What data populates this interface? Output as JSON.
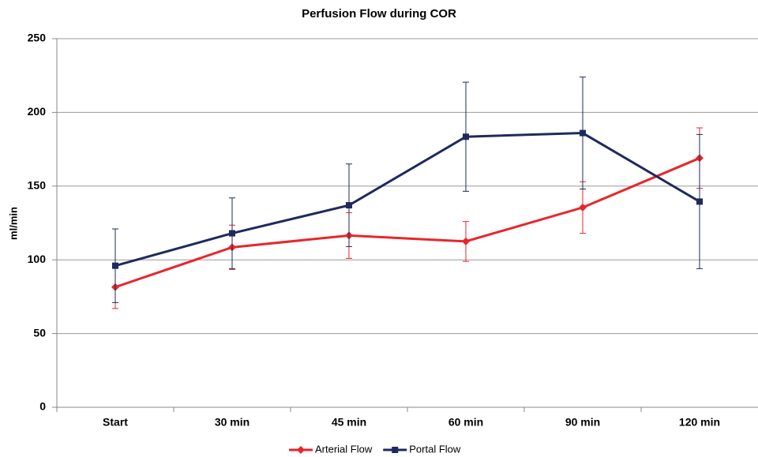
{
  "chart_data": {
    "type": "line",
    "title": "Perfusion Flow during COR",
    "y_label": "ml/min",
    "categories": [
      "Start",
      "30 min",
      "45 min",
      "60 min",
      "90 min",
      "120 min"
    ],
    "series": [
      {
        "name": "Arterial Flow",
        "color": "#e8262b",
        "marker": "diamond",
        "values": [
          81.5,
          108.5,
          116.5,
          112.5,
          135.5,
          169
        ],
        "errors": [
          14.5,
          15,
          15.5,
          13.5,
          17.5,
          20.5
        ]
      },
      {
        "name": "Portal Flow",
        "color": "#1f2a5c",
        "marker": "square",
        "values": [
          96,
          118,
          137,
          183.5,
          186,
          139.5
        ],
        "errors": [
          25,
          24,
          28,
          37,
          38,
          45.5
        ]
      }
    ],
    "ylim": [
      0,
      250
    ],
    "yticks": [
      0,
      50,
      100,
      150,
      200,
      250
    ],
    "grid": true,
    "legend": "bottom"
  }
}
